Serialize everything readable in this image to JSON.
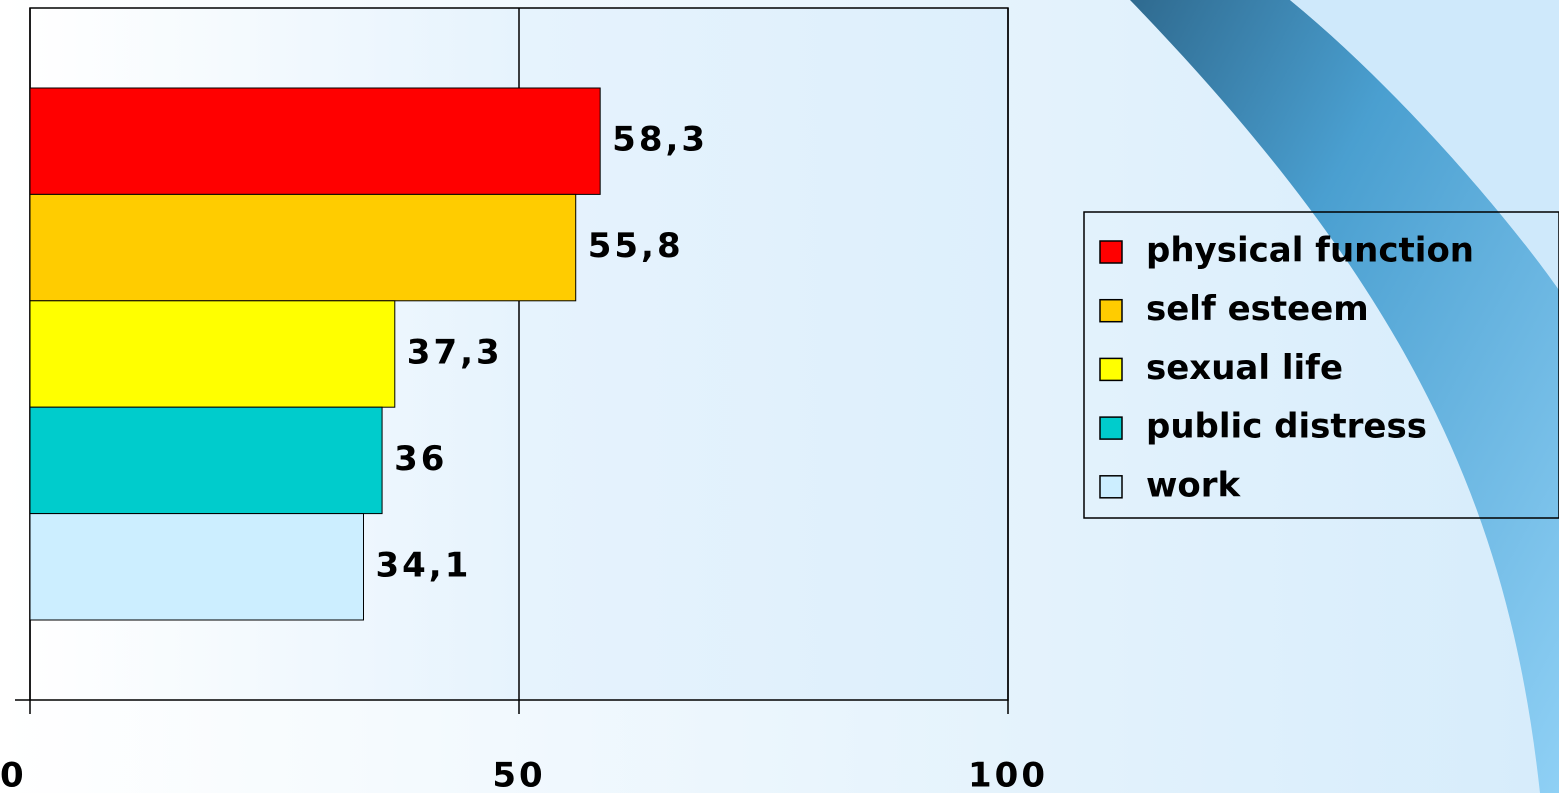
{
  "chart_data": {
    "type": "bar",
    "orientation": "horizontal",
    "series": [
      {
        "name": "physical function",
        "color": "#ff0000",
        "values": [
          58.3
        ],
        "value_labels": [
          "58,3"
        ]
      },
      {
        "name": "self esteem",
        "color": "#ffcc00",
        "values": [
          55.8
        ],
        "value_labels": [
          "55,8"
        ]
      },
      {
        "name": "sexual life",
        "color": "#ffff00",
        "values": [
          37.3
        ],
        "value_labels": [
          "37,3"
        ]
      },
      {
        "name": "public distress",
        "color": "#00cccc",
        "values": [
          36
        ],
        "value_labels": [
          "36"
        ]
      },
      {
        "name": "work",
        "color": "#cceeff",
        "values": [
          34.1
        ],
        "value_labels": [
          "34,1"
        ]
      }
    ],
    "xlim": [
      0,
      100
    ],
    "xticks": [
      0,
      50,
      100
    ],
    "grid": true,
    "legend": "right"
  }
}
